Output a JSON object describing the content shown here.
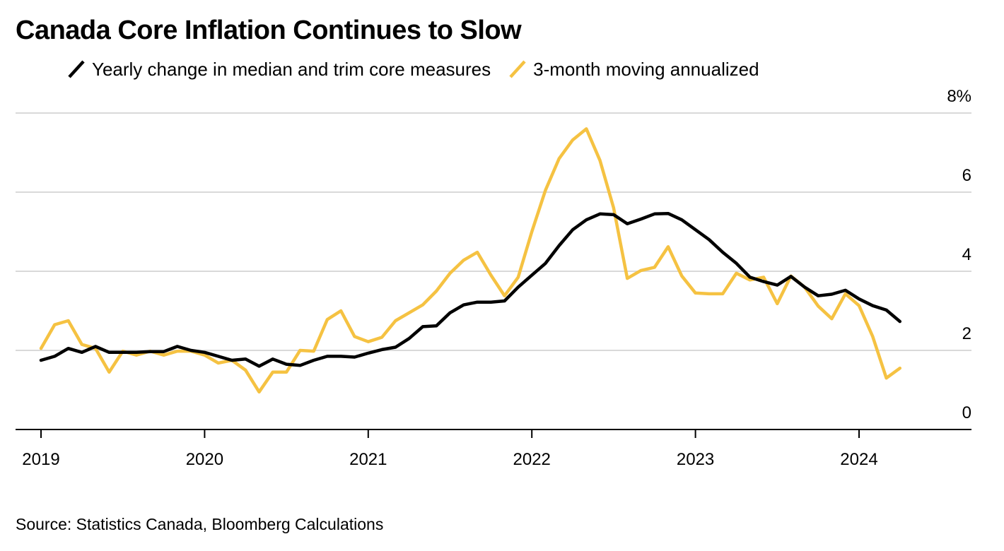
{
  "colors": {
    "series_primary": "#000000",
    "series_secondary": "#f5c242",
    "grid": "#d9d9d9",
    "axis": "#000000"
  },
  "chart_data": {
    "type": "line",
    "title": "Canada Core Inflation Continues to Slow",
    "source": "Source: Statistics Canada, Bloomberg Calculations",
    "y_unit_suffix": "%",
    "ylim": [
      0,
      8
    ],
    "yticks": [
      0,
      2,
      4,
      6,
      8
    ],
    "xlim": [
      2019.0,
      2024.7
    ],
    "xticks": [
      {
        "value": 2019,
        "label": "2019"
      },
      {
        "value": 2020,
        "label": "2020"
      },
      {
        "value": 2021,
        "label": "2021"
      },
      {
        "value": 2022,
        "label": "2022"
      },
      {
        "value": 2023,
        "label": "2023"
      },
      {
        "value": 2024,
        "label": "2024"
      }
    ],
    "grid": true,
    "legend_position": "top",
    "series": [
      {
        "name": "Yearly change in median and trim core measures",
        "color": "#000000",
        "start": 2019.0,
        "step_months": 1,
        "values": [
          1.75,
          1.85,
          2.05,
          1.95,
          2.1,
          1.95,
          1.95,
          1.95,
          1.97,
          1.97,
          2.1,
          2.0,
          1.95,
          1.85,
          1.75,
          1.78,
          1.6,
          1.78,
          1.65,
          1.62,
          1.75,
          1.85,
          1.85,
          1.83,
          1.93,
          2.02,
          2.08,
          2.3,
          2.6,
          2.62,
          2.95,
          3.15,
          3.22,
          3.22,
          3.25,
          3.6,
          3.9,
          4.2,
          4.65,
          5.05,
          5.3,
          5.45,
          5.43,
          5.2,
          5.32,
          5.45,
          5.46,
          5.3,
          5.05,
          4.8,
          4.48,
          4.2,
          3.85,
          3.74,
          3.65,
          3.87,
          3.6,
          3.38,
          3.42,
          3.52,
          3.3,
          3.13,
          3.02,
          2.73
        ]
      },
      {
        "name": "3-month moving annualized",
        "color": "#f5c242",
        "start": 2019.0,
        "step_months": 1,
        "values": [
          2.05,
          2.65,
          2.75,
          2.15,
          2.05,
          1.45,
          1.98,
          1.88,
          1.98,
          1.88,
          1.98,
          1.98,
          1.88,
          1.68,
          1.75,
          1.5,
          0.95,
          1.45,
          1.45,
          2.0,
          1.98,
          2.78,
          3.0,
          2.35,
          2.22,
          2.33,
          2.75,
          2.95,
          3.15,
          3.5,
          3.95,
          4.28,
          4.48,
          3.9,
          3.38,
          3.85,
          5.0,
          6.05,
          6.85,
          7.32,
          7.6,
          6.8,
          5.6,
          3.82,
          4.02,
          4.1,
          4.62,
          3.88,
          3.45,
          3.43,
          3.43,
          3.95,
          3.78,
          3.85,
          3.18,
          3.88,
          3.6,
          3.12,
          2.8,
          3.43,
          3.13,
          2.35,
          1.3,
          1.55
        ]
      }
    ]
  }
}
